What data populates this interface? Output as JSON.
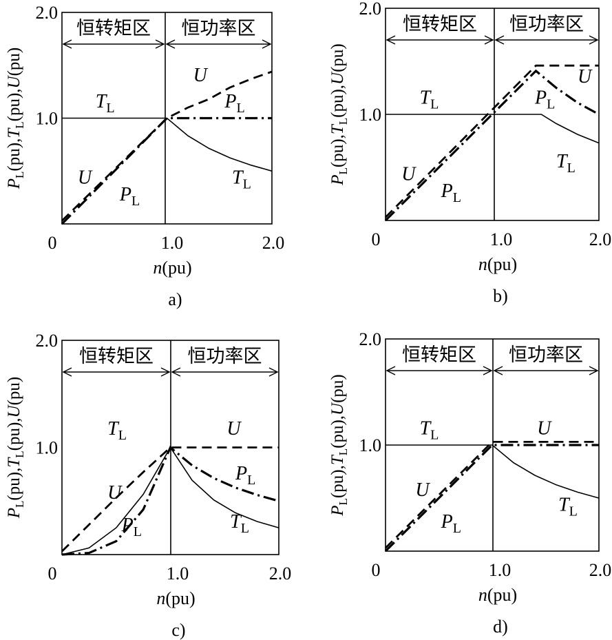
{
  "chart_data": [
    {
      "panel": "a)",
      "type": "line",
      "regions": [
        "恒转矩区",
        "恒功率区"
      ],
      "ylabel": {
        "p": "P",
        "p_sub": "L",
        "t": "T",
        "t_sub": "L",
        "u": "U",
        "unit": "(pu)"
      },
      "xlabel": {
        "var": "n",
        "unit": "(pu)"
      },
      "x_ticks": [
        "0",
        "1.0",
        "2.0"
      ],
      "y_ticks": [
        "1.0",
        "2.0"
      ],
      "xlim": [
        0,
        2.0
      ],
      "ylim": [
        0,
        2.0
      ],
      "series": [
        {
          "name": "T",
          "sub": "L",
          "style": "solid-thin",
          "x": [
            0,
            1.0,
            1.2,
            1.4,
            1.6,
            1.8,
            2.0
          ],
          "y": [
            1.0,
            1.0,
            0.833,
            0.714,
            0.625,
            0.556,
            0.5
          ]
        },
        {
          "name": "P",
          "sub": "L",
          "style": "dashdot",
          "x": [
            0,
            1.0,
            2.0
          ],
          "y": [
            0.0,
            1.0,
            1.0
          ]
        },
        {
          "name": "U",
          "sub": "",
          "style": "dashed",
          "x": [
            0,
            1.0,
            1.2,
            1.4,
            1.6,
            1.8,
            2.0
          ],
          "y": [
            0.03,
            1.0,
            1.1,
            1.18,
            1.29,
            1.37,
            1.44
          ]
        }
      ]
    },
    {
      "panel": "b)",
      "type": "line",
      "regions": [
        "恒转矩区",
        "恒功率区"
      ],
      "ylabel": {
        "p": "P",
        "p_sub": "L",
        "t": "T",
        "t_sub": "L",
        "u": "U",
        "unit": "(pu)"
      },
      "xlabel": {
        "var": "n",
        "unit": "(pu)"
      },
      "x_ticks": [
        "0",
        "1.0",
        "2.0"
      ],
      "y_ticks": [
        "1.0",
        "2.0"
      ],
      "xlim": [
        0,
        2.0
      ],
      "ylim": [
        0,
        2.0
      ],
      "series": [
        {
          "name": "T",
          "sub": "L",
          "style": "solid-thin",
          "x": [
            0,
            1.46,
            1.6,
            1.8,
            2.0
          ],
          "y": [
            1.0,
            1.0,
            0.913,
            0.811,
            0.73
          ]
        },
        {
          "name": "P",
          "sub": "L",
          "style": "dashdot",
          "x": [
            0,
            1.41,
            1.6,
            1.8,
            2.0
          ],
          "y": [
            0.0,
            1.41,
            1.25,
            1.11,
            1.0
          ]
        },
        {
          "name": "U",
          "sub": "",
          "style": "dashed",
          "x": [
            0,
            1.41,
            2.0
          ],
          "y": [
            0.03,
            1.46,
            1.46
          ]
        }
      ]
    },
    {
      "panel": "c)",
      "type": "line",
      "regions": [
        "恒转矩区",
        "恒功率区"
      ],
      "ylabel": {
        "p": "P",
        "p_sub": "L",
        "t": "T",
        "t_sub": "L",
        "u": "U",
        "unit": "(pu)"
      },
      "xlabel": {
        "var": "n",
        "unit": "(pu)"
      },
      "x_ticks": [
        "0",
        "1.0",
        "2.0"
      ],
      "y_ticks": [
        "1.0",
        "2.0"
      ],
      "xlim": [
        0,
        2.0
      ],
      "ylim": [
        0,
        2.0
      ],
      "series": [
        {
          "name": "T",
          "sub": "L",
          "style": "solid-thin",
          "x": [
            0,
            0.25,
            0.5,
            0.75,
            1.0,
            1.2,
            1.4,
            1.6,
            1.8,
            2.0
          ],
          "y": [
            0.0,
            0.0625,
            0.25,
            0.5625,
            1.0,
            0.694,
            0.51,
            0.39,
            0.309,
            0.25
          ]
        },
        {
          "name": "P",
          "sub": "L",
          "style": "dashdot",
          "x": [
            0,
            0.25,
            0.5,
            0.75,
            1.0,
            1.2,
            1.4,
            1.6,
            1.8,
            2.0
          ],
          "y": [
            0.0,
            0.0156,
            0.125,
            0.42,
            1.0,
            0.833,
            0.714,
            0.625,
            0.556,
            0.5
          ]
        },
        {
          "name": "U",
          "sub": "",
          "style": "dashed",
          "x": [
            0,
            0.25,
            0.5,
            0.75,
            1.0,
            2.0
          ],
          "y": [
            0.03,
            0.28,
            0.53,
            0.77,
            1.0,
            1.0
          ]
        }
      ]
    },
    {
      "panel": "d)",
      "type": "line",
      "regions": [
        "恒转矩区",
        "恒功率区"
      ],
      "ylabel": {
        "p": "P",
        "p_sub": "L",
        "t": "T",
        "t_sub": "L",
        "u": "U",
        "unit": "(pu)"
      },
      "xlabel": {
        "var": "n",
        "unit": "(pu)"
      },
      "x_ticks": [
        "0",
        "1.0",
        "2.0"
      ],
      "y_ticks": [
        "1.0",
        "2.0"
      ],
      "xlim": [
        0,
        2.0
      ],
      "ylim": [
        0,
        2.0
      ],
      "series": [
        {
          "name": "T",
          "sub": "L",
          "style": "solid-thin",
          "x": [
            0,
            1.0,
            1.2,
            1.4,
            1.6,
            1.8,
            2.0
          ],
          "y": [
            1.0,
            1.0,
            0.833,
            0.714,
            0.625,
            0.556,
            0.5
          ]
        },
        {
          "name": "P",
          "sub": "L",
          "style": "dashdot",
          "x": [
            0,
            1.0,
            2.0
          ],
          "y": [
            0.0,
            1.0,
            1.0
          ]
        },
        {
          "name": "U",
          "sub": "",
          "style": "dashed",
          "x": [
            0,
            1.0,
            2.0
          ],
          "y": [
            0.03,
            1.03,
            1.03
          ]
        }
      ]
    }
  ]
}
